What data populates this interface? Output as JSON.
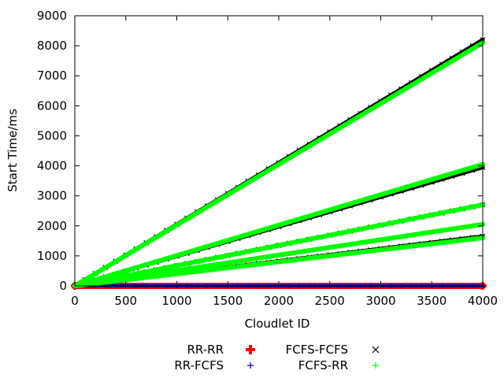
{
  "chart_data": {
    "type": "scatter",
    "xlabel": "Cloudlet ID",
    "ylabel": "Start Time/ms",
    "xlim": [
      0,
      4000
    ],
    "ylim": [
      0,
      9000
    ],
    "xticks": [
      0,
      500,
      1000,
      1500,
      2000,
      2500,
      3000,
      3500,
      4000
    ],
    "yticks": [
      0,
      1000,
      2000,
      3000,
      4000,
      5000,
      6000,
      7000,
      8000,
      9000
    ],
    "grid": false,
    "legend_position": "bottom",
    "series": [
      {
        "name": "RR-RR",
        "marker": "filled-plus",
        "color": "#ff0000",
        "lines": [
          {
            "x": [
              0,
              4000
            ],
            "y": [
              0,
              0
            ]
          }
        ]
      },
      {
        "name": "RR-FCFS",
        "marker": "plus",
        "color": "#0000a0",
        "lines": [
          {
            "x": [
              0,
              4000
            ],
            "y": [
              0,
              0
            ]
          }
        ]
      },
      {
        "name": "FCFS-FCFS",
        "marker": "cross",
        "color": "#000000",
        "lines": [
          {
            "x": [
              0,
              4000
            ],
            "y": [
              0,
              8200
            ]
          },
          {
            "x": [
              0,
              4000
            ],
            "y": [
              0,
              3950
            ]
          },
          {
            "x": [
              0,
              4000
            ],
            "y": [
              0,
              2700
            ]
          },
          {
            "x": [
              0,
              4000
            ],
            "y": [
              0,
              1650
            ]
          }
        ]
      },
      {
        "name": "FCFS-RR",
        "marker": "plus",
        "color": "#00ff00",
        "lines": [
          {
            "x": [
              0,
              4000
            ],
            "y": [
              0,
              8100
            ]
          },
          {
            "x": [
              0,
              4000
            ],
            "y": [
              0,
              4050
            ]
          },
          {
            "x": [
              0,
              4000
            ],
            "y": [
              0,
              2700
            ]
          },
          {
            "x": [
              0,
              4000
            ],
            "y": [
              0,
              2050
            ]
          },
          {
            "x": [
              0,
              4000
            ],
            "y": [
              0,
              1600
            ]
          }
        ]
      }
    ]
  }
}
